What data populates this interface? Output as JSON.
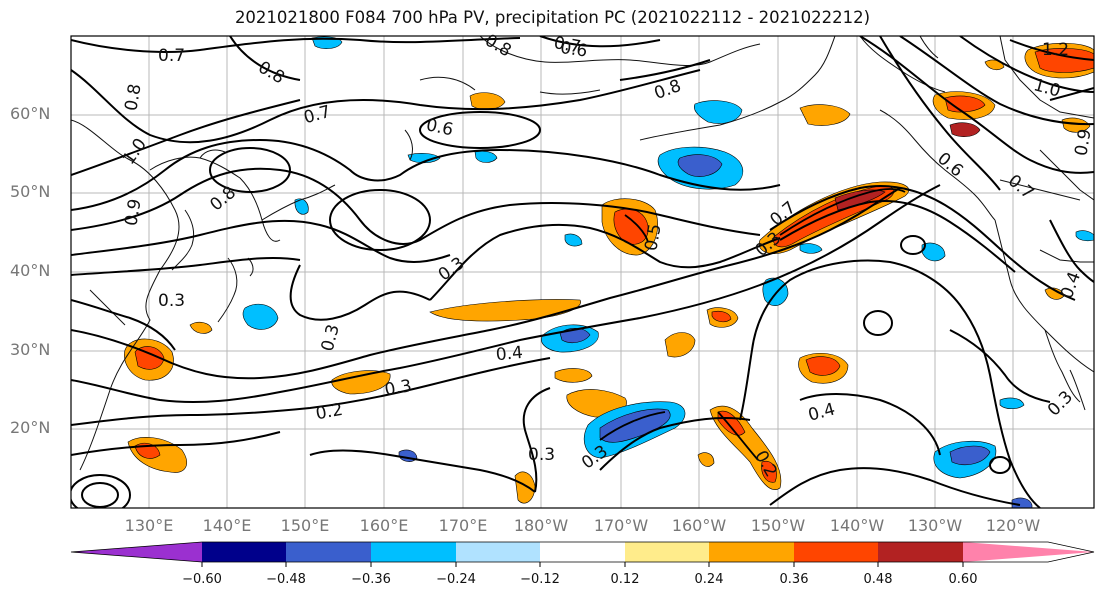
{
  "title": "2021021800 F084 700 hPa PV, precipitation PC (2021022112 - 2021022212)",
  "lat_labels": [
    "60°N",
    "50°N",
    "40°N",
    "30°N",
    "20°N"
  ],
  "lon_labels": [
    "130°E",
    "140°E",
    "150°E",
    "160°E",
    "170°E",
    "180°W",
    "170°W",
    "160°W",
    "150°W",
    "140°W",
    "130°W",
    "120°W"
  ],
  "colorbar": {
    "ticks": [
      "−0.60",
      "−0.48",
      "−0.36",
      "−0.24",
      "−0.12",
      "0.12",
      "0.24",
      "0.36",
      "0.48",
      "0.60"
    ],
    "colors": [
      "#9b30d0",
      "#00008b",
      "#3a5fcd",
      "#00bfff",
      "#b0e2ff",
      "#ffffff",
      "#ffec8b",
      "#ffa500",
      "#ff4500",
      "#b22222",
      "#ff82ab"
    ]
  },
  "contour_labels": [
    "0.7",
    "0.8",
    "0.8",
    "0.8",
    "0.7",
    "0.7",
    "0.6",
    "1.0",
    "0.9",
    "0.8",
    "0.8",
    "0.6",
    "0.5",
    "0.3",
    "0.3",
    "0.3",
    "0.4",
    "0.3",
    "0.2",
    "0.7",
    "0.3",
    "0.3",
    "0.3",
    "0.2",
    "0.4",
    "0.3",
    "1.0",
    "1.2",
    "0.9",
    "0.7",
    "0.6",
    "0.4"
  ]
}
